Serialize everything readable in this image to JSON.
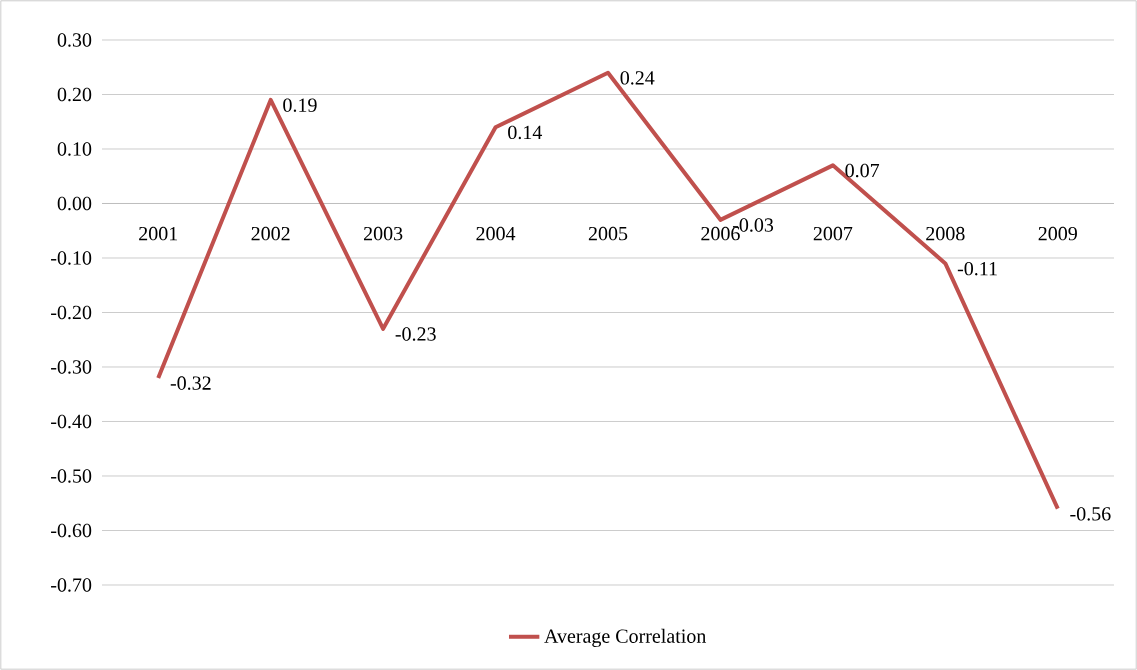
{
  "chart_data": {
    "type": "line",
    "categories": [
      "2001",
      "2002",
      "2003",
      "2004",
      "2005",
      "2006",
      "2007",
      "2008",
      "2009"
    ],
    "series": [
      {
        "name": "Average Correlation",
        "color": "#c0504d",
        "values": [
          -0.32,
          0.19,
          -0.23,
          0.14,
          0.24,
          -0.03,
          0.07,
          -0.11,
          -0.56
        ]
      }
    ],
    "ylim": [
      -0.7,
      0.3
    ],
    "yticks": [
      {
        "value": -0.7,
        "label": "-0.70"
      },
      {
        "value": -0.6,
        "label": "-0.60"
      },
      {
        "value": -0.5,
        "label": "-0.50"
      },
      {
        "value": -0.4,
        "label": "-0.40"
      },
      {
        "value": -0.3,
        "label": "-0.30"
      },
      {
        "value": -0.2,
        "label": "-0.20"
      },
      {
        "value": -0.1,
        "label": "-0.10"
      },
      {
        "value": 0,
        "label": "0.00"
      },
      {
        "value": 0.1,
        "label": "0.10"
      },
      {
        "value": 0.2,
        "label": "0.20"
      },
      {
        "value": 0.3,
        "label": "0.30"
      }
    ],
    "grid": "y",
    "legend": "bottom",
    "data_labels": true,
    "marker": "none",
    "line_style": "solid"
  }
}
